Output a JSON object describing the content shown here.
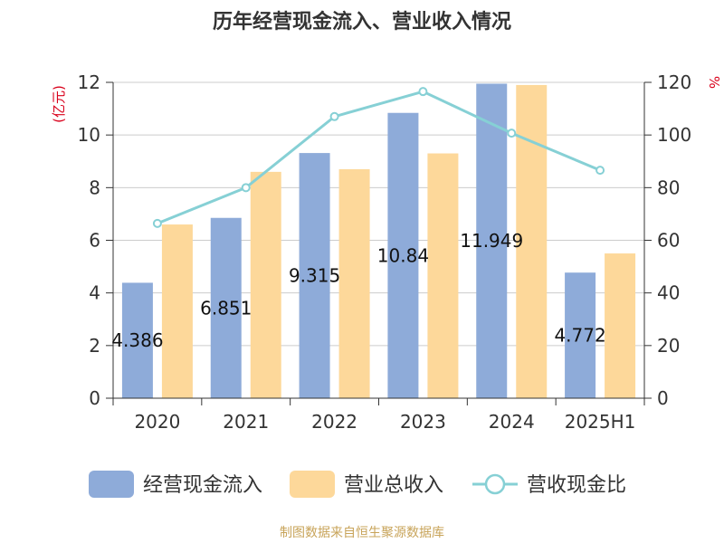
{
  "title": "历年经营现金流入、营业收入情况",
  "source": "制图数据来自恒生聚源数据库",
  "chart_data": {
    "type": "bar",
    "categories": [
      "2020",
      "2021",
      "2022",
      "2023",
      "2024",
      "2025H1"
    ],
    "series": [
      {
        "name": "经营现金流入",
        "type": "bar",
        "axis": "left",
        "color": "#8eabd9",
        "values": [
          4.386,
          6.851,
          9.315,
          10.84,
          11.949,
          4.772
        ],
        "labels": [
          "4.386",
          "6.851",
          "9.315",
          "10.84",
          "11.949",
          "4.772"
        ]
      },
      {
        "name": "营业总收入",
        "type": "bar",
        "axis": "left",
        "color": "#fdd89a",
        "values": [
          6.6,
          8.6,
          8.7,
          9.3,
          11.9,
          5.5
        ]
      },
      {
        "name": "营收现金比",
        "type": "line",
        "axis": "right",
        "color": "#86d0d5",
        "values": [
          66.4,
          80.0,
          107.0,
          116.5,
          100.7,
          86.6
        ]
      }
    ],
    "y_left": {
      "label": "(亿元)",
      "ylim": [
        0,
        12
      ],
      "ticks": [
        "0",
        "2",
        "4",
        "6",
        "8",
        "10",
        "12"
      ]
    },
    "y_right": {
      "label": "%",
      "ylim": [
        0,
        120
      ],
      "ticks": [
        "0",
        "20",
        "40",
        "60",
        "80",
        "100",
        "120"
      ]
    },
    "grid": true,
    "legend": "bottom"
  }
}
